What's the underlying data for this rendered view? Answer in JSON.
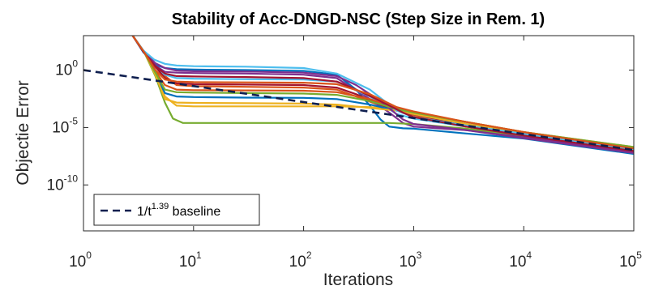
{
  "chart_data": {
    "type": "line",
    "title": "Stability of Acc-DNGD-NSC (Step Size in Rem. 1)",
    "xlabel": "Iterations",
    "ylabel": "Objectie Error",
    "xscale": "log",
    "yscale": "log",
    "xlim": [
      1,
      100000
    ],
    "ylim": [
      1e-14,
      1000.0
    ],
    "xticks": [
      {
        "base": "10",
        "exp": "0"
      },
      {
        "base": "10",
        "exp": "1"
      },
      {
        "base": "10",
        "exp": "2"
      },
      {
        "base": "10",
        "exp": "3"
      },
      {
        "base": "10",
        "exp": "4"
      },
      {
        "base": "10",
        "exp": "5"
      }
    ],
    "yticks": [
      {
        "base": "10",
        "exp": "-10",
        "value": 1e-10
      },
      {
        "base": "10",
        "exp": "-5",
        "value": 1e-05
      },
      {
        "base": "10",
        "exp": "0",
        "value": 1
      }
    ],
    "grid": false,
    "legend": {
      "placement": "bottom-left",
      "label_prefix": "1/t",
      "label_exp": "1.39",
      "label_suffix": " baseline"
    },
    "baseline": {
      "style": "dashed",
      "color": "#0f1f4f",
      "x": [
        1,
        100000
      ],
      "y": [
        1.0,
        1.1e-07
      ]
    },
    "series": [
      {
        "color": "#0072bd",
        "x": [
          2.8,
          3.5,
          4.5,
          5.5,
          7,
          10,
          30,
          100,
          200,
          300,
          400,
          500,
          600,
          800,
          1000,
          3000,
          10000,
          100000
        ],
        "y": [
          1000,
          35,
          3,
          1.5,
          1.2,
          1.1,
          1.0,
          0.85,
          0.4,
          0.02,
          0.0008,
          5e-05,
          1.2e-05,
          8.5e-06,
          8e-06,
          3e-06,
          1.1e-06,
          5e-08
        ]
      },
      {
        "color": "#d95319",
        "x": [
          2.8,
          3.6,
          4.6,
          5.5,
          7,
          10,
          30,
          100,
          200,
          300,
          500,
          800,
          1000,
          3000,
          10000,
          100000
        ],
        "y": [
          1000,
          35,
          1.5,
          0.3,
          0.05,
          0.04,
          0.035,
          0.03,
          0.02,
          0.005,
          0.0008,
          0.0002,
          0.00012,
          1.2e-05,
          2.5e-06,
          1e-07
        ]
      },
      {
        "color": "#edb120",
        "x": [
          2.8,
          3.6,
          4.5,
          5.5,
          7,
          10,
          30,
          100,
          200,
          400,
          700,
          1000,
          3000,
          10000,
          100000
        ],
        "y": [
          1000,
          30,
          0.5,
          0.005,
          0.0008,
          0.0007,
          0.0007,
          0.0007,
          0.0007,
          0.0006,
          0.0004,
          0.0002,
          3e-05,
          4e-06,
          2e-07
        ]
      },
      {
        "color": "#7e2f8e",
        "x": [
          2.8,
          3.5,
          4.5,
          5.5,
          7,
          10,
          30,
          100,
          200,
          400,
          600,
          800,
          1000,
          2000,
          3000,
          10000,
          100000
        ],
        "y": [
          1000,
          40,
          2.5,
          0.7,
          0.6,
          0.55,
          0.5,
          0.4,
          0.2,
          0.003,
          0.0002,
          2.5e-05,
          1.2e-05,
          7.5e-06,
          6e-06,
          1.5e-06,
          8e-08
        ]
      },
      {
        "color": "#77ac30",
        "x": [
          2.8,
          3.6,
          4.5,
          5.5,
          6.5,
          8,
          10,
          30,
          100,
          300,
          600,
          1000,
          3000,
          10000,
          100000
        ],
        "y": [
          1000,
          30,
          0.3,
          0.0015,
          6e-05,
          2.5e-05,
          2.5e-05,
          2.5e-05,
          2.5e-05,
          2.5e-05,
          2.5e-05,
          2e-05,
          8e-06,
          2e-06,
          1.5e-07
        ]
      },
      {
        "color": "#4dbeee",
        "x": [
          2.8,
          3.6,
          4.5,
          5.5,
          7,
          10,
          30,
          100,
          200,
          400,
          700,
          1000,
          3000,
          10000,
          100000
        ],
        "y": [
          1000,
          35,
          1.8,
          0.4,
          0.2,
          0.18,
          0.16,
          0.15,
          0.1,
          0.005,
          0.00015,
          6e-05,
          1.2e-05,
          2.5e-06,
          1.2e-07
        ]
      },
      {
        "color": "#a2142f",
        "x": [
          2.8,
          3.5,
          4.5,
          5.5,
          7,
          10,
          30,
          100,
          200,
          300,
          500,
          700,
          1000,
          3000,
          10000,
          100000
        ],
        "y": [
          1000,
          40,
          2,
          0.2,
          0.07,
          0.06,
          0.055,
          0.05,
          0.03,
          0.008,
          0.001,
          0.0003,
          0.00015,
          1.5e-05,
          2.5e-06,
          1e-07
        ]
      },
      {
        "color": "#0072bd",
        "x": [
          2.8,
          3.6,
          4.6,
          5.5,
          7,
          10,
          30,
          100,
          200,
          400,
          700,
          1000,
          3000,
          10000,
          100000
        ],
        "y": [
          1000,
          30,
          0.3,
          0.01,
          0.005,
          0.0045,
          0.004,
          0.0038,
          0.003,
          0.001,
          0.0003,
          0.00015,
          2e-05,
          3e-06,
          1.2e-07
        ]
      },
      {
        "color": "#d95319",
        "x": [
          2.8,
          3.6,
          4.5,
          5.5,
          7,
          10,
          30,
          100,
          200,
          400,
          700,
          1000,
          3000,
          10000,
          100000
        ],
        "y": [
          1000,
          32,
          0.8,
          0.05,
          0.02,
          0.018,
          0.017,
          0.016,
          0.012,
          0.003,
          0.0005,
          0.0002,
          3e-05,
          4e-06,
          1.8e-07
        ]
      },
      {
        "color": "#edb120",
        "x": [
          2.8,
          3.6,
          4.5,
          5.5,
          7,
          10,
          30,
          100,
          200,
          400,
          700,
          1000,
          3000,
          10000,
          100000
        ],
        "y": [
          1000,
          30,
          0.4,
          0.003,
          0.0015,
          0.0014,
          0.0013,
          0.0012,
          0.001,
          0.0005,
          0.0003,
          0.00015,
          2e-05,
          3e-06,
          1.5e-07
        ]
      },
      {
        "color": "#7e2f8e",
        "x": [
          2.8,
          3.5,
          4.5,
          5.5,
          7,
          10,
          30,
          100,
          200,
          300,
          500,
          800,
          1000,
          3000,
          10000,
          100000
        ],
        "y": [
          1000,
          45,
          4,
          1.5,
          0.9,
          0.8,
          0.75,
          0.6,
          0.3,
          0.05,
          0.002,
          5e-05,
          2e-05,
          6e-06,
          1.2e-06,
          6e-08
        ]
      },
      {
        "color": "#77ac30",
        "x": [
          2.8,
          3.6,
          4.5,
          5.5,
          7,
          10,
          30,
          100,
          200,
          400,
          700,
          1000,
          3000,
          10000,
          100000
        ],
        "y": [
          1000,
          32,
          0.6,
          0.02,
          0.012,
          0.011,
          0.01,
          0.009,
          0.007,
          0.002,
          0.0004,
          0.0002,
          3e-05,
          4e-06,
          2e-07
        ]
      },
      {
        "color": "#4dbeee",
        "x": [
          2.8,
          3.5,
          4.4,
          5.5,
          7,
          10,
          30,
          100,
          200,
          400,
          700,
          1000,
          3000,
          10000,
          100000
        ],
        "y": [
          1000,
          50,
          8,
          3.5,
          2.5,
          2.2,
          2.0,
          1.5,
          0.5,
          0.02,
          0.0003,
          8e-05,
          1.5e-05,
          2.8e-06,
          1.2e-07
        ]
      },
      {
        "color": "#a2142f",
        "x": [
          2.8,
          3.5,
          4.5,
          5.5,
          7,
          10,
          30,
          100,
          200,
          300,
          500,
          800,
          1000,
          3000,
          10000,
          100000
        ],
        "y": [
          1000,
          40,
          2.2,
          0.5,
          0.3,
          0.28,
          0.25,
          0.2,
          0.1,
          0.02,
          0.002,
          0.0002,
          8e-05,
          1.2e-05,
          2e-06,
          9e-08
        ]
      },
      {
        "color": "#d95319",
        "x": [
          2.8,
          3.6,
          4.5,
          5.5,
          7,
          10,
          30,
          100,
          200,
          400,
          700,
          1000,
          3000,
          10000,
          100000
        ],
        "y": [
          1000,
          32,
          1.0,
          0.15,
          0.1,
          0.09,
          0.085,
          0.08,
          0.06,
          0.008,
          0.0006,
          0.00025,
          3e-05,
          4e-06,
          1.5e-07
        ]
      }
    ]
  }
}
